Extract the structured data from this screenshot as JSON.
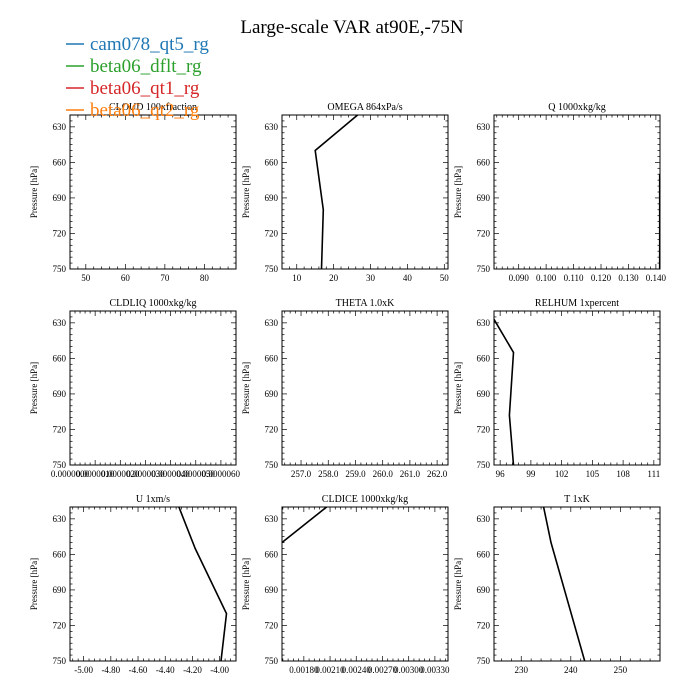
{
  "title": "Large-scale VAR at90E,-75N",
  "legend": [
    {
      "name": "cam078_qt5_rg",
      "color": "#1f77b4"
    },
    {
      "name": "beta06_dflt_rg",
      "color": "#2ca02c"
    },
    {
      "name": "beta06_qt1_rg",
      "color": "#d62728"
    },
    {
      "name": "beta06_qt2_rg",
      "color": "#ff7f0e"
    }
  ],
  "chart_data": [
    {
      "type": "line",
      "title": "CLOUD  100xfraction",
      "ylabel": "Pressure [hPa]",
      "xlim": [
        46,
        88
      ],
      "ylim": [
        750,
        620
      ],
      "xticks": [
        "50",
        "60",
        "70",
        "80"
      ],
      "xtick_values": [
        50,
        60,
        70,
        80
      ],
      "yticks": [
        "630",
        "660",
        "690",
        "720",
        "750"
      ],
      "series": []
    },
    {
      "type": "line",
      "title": "OMEGA  864xPa/s",
      "ylabel": "Pressure [hPa]",
      "xlim": [
        6,
        51
      ],
      "ylim": [
        750,
        620
      ],
      "xticks": [
        "10",
        "20",
        "30",
        "40",
        "50"
      ],
      "xtick_values": [
        10,
        20,
        30,
        40,
        50
      ],
      "yticks": [
        "630",
        "660",
        "690",
        "720",
        "750"
      ],
      "series": [
        {
          "color": "#000000",
          "x": [
            26.5,
            15,
            17.2,
            16.7
          ],
          "y": [
            620,
            650,
            700,
            750
          ]
        }
      ]
    },
    {
      "type": "line",
      "title": "Q  1000xkg/kg",
      "ylabel": "Pressure [hPa]",
      "xlim": [
        0.081,
        0.1415
      ],
      "ylim": [
        750,
        620
      ],
      "xticks": [
        "0.090",
        "0.100",
        "0.110",
        "0.120",
        "0.130",
        "0.140"
      ],
      "xtick_values": [
        0.09,
        0.1,
        0.11,
        0.12,
        0.13,
        0.14
      ],
      "yticks": [
        "630",
        "660",
        "690",
        "720",
        "750"
      ],
      "series": [
        {
          "color": "#000000",
          "x": [
            0.1414,
            0.1414
          ],
          "y": [
            670,
            750
          ]
        }
      ]
    },
    {
      "type": "line",
      "title": "CLDLIQ  1000xkg/kg",
      "ylabel": "Pressure [hPa]",
      "xlim": [
        0,
        6.6e-06
      ],
      "ylim": [
        750,
        620
      ],
      "xticks": [
        "0.0000000",
        "0.0000010",
        "0.0000020",
        "0.0000030",
        "0.0000040",
        "0.0000050",
        "0.0000060"
      ],
      "xtick_values": [
        0,
        1e-06,
        2e-06,
        3e-06,
        4e-06,
        5e-06,
        6e-06
      ],
      "yticks": [
        "630",
        "660",
        "690",
        "720",
        "750"
      ],
      "series": []
    },
    {
      "type": "line",
      "title": "THETA  1.0xK",
      "ylabel": "Pressure [hPa]",
      "xlim": [
        256.3,
        262.4
      ],
      "ylim": [
        750,
        620
      ],
      "xticks": [
        "257.0",
        "258.0",
        "259.0",
        "260.0",
        "261.0",
        "262.0"
      ],
      "xtick_values": [
        257,
        258,
        259,
        260,
        261,
        262
      ],
      "yticks": [
        "630",
        "660",
        "690",
        "720",
        "750"
      ],
      "series": []
    },
    {
      "type": "line",
      "title": "RELHUM  1xpercent",
      "ylabel": "Pressure [hPa]",
      "xlim": [
        95.4,
        111.6
      ],
      "ylim": [
        750,
        620
      ],
      "xticks": [
        "96",
        "99",
        "102",
        "105",
        "108",
        "111"
      ],
      "xtick_values": [
        96,
        99,
        102,
        105,
        108,
        111
      ],
      "yticks": [
        "630",
        "660",
        "690",
        "720",
        "750"
      ],
      "series": [
        {
          "color": "#000000",
          "x": [
            95.4,
            97.3,
            96.9,
            97.3
          ],
          "y": [
            627,
            655,
            708,
            750
          ]
        }
      ]
    },
    {
      "type": "line",
      "title": "U  1xm/s",
      "ylabel": "Pressure [hPa]",
      "xlim": [
        -5.1,
        -3.88
      ],
      "ylim": [
        750,
        620
      ],
      "xticks": [
        "-5.00",
        "-4.80",
        "-4.60",
        "-4.40",
        "-4.20",
        "-4.00"
      ],
      "xtick_values": [
        -5,
        -4.8,
        -4.6,
        -4.4,
        -4.2,
        -4
      ],
      "yticks": [
        "630",
        "660",
        "690",
        "720",
        "750"
      ],
      "series": [
        {
          "color": "#000000",
          "x": [
            -4.3,
            -4.18,
            -3.95,
            -3.99
          ],
          "y": [
            620,
            655,
            710,
            750
          ]
        }
      ]
    },
    {
      "type": "line",
      "title": "CLDICE  1000xkg/kg",
      "ylabel": "Pressure [hPa]",
      "xlim": [
        0.00155,
        0.00345
      ],
      "ylim": [
        750,
        620
      ],
      "xticks": [
        "0.00180",
        "0.00210",
        "0.00240",
        "0.00270",
        "0.00300",
        "0.00330"
      ],
      "xtick_values": [
        0.0018,
        0.0021,
        0.0024,
        0.0027,
        0.003,
        0.0033
      ],
      "yticks": [
        "630",
        "660",
        "690",
        "720",
        "750"
      ],
      "series": [
        {
          "color": "#000000",
          "x": [
            0.00206,
            0.00155
          ],
          "y": [
            620,
            650
          ]
        }
      ]
    },
    {
      "type": "line",
      "title": "T  1xK",
      "ylabel": "Pressure [hPa]",
      "xlim": [
        224.5,
        258
      ],
      "ylim": [
        750,
        620
      ],
      "xticks": [
        "230",
        "240",
        "250"
      ],
      "xtick_values": [
        230,
        240,
        250
      ],
      "yticks": [
        "630",
        "660",
        "690",
        "720",
        "750"
      ],
      "series": [
        {
          "color": "#000000",
          "x": [
            234.5,
            236,
            242.8
          ],
          "y": [
            620,
            650,
            750
          ]
        }
      ]
    }
  ]
}
